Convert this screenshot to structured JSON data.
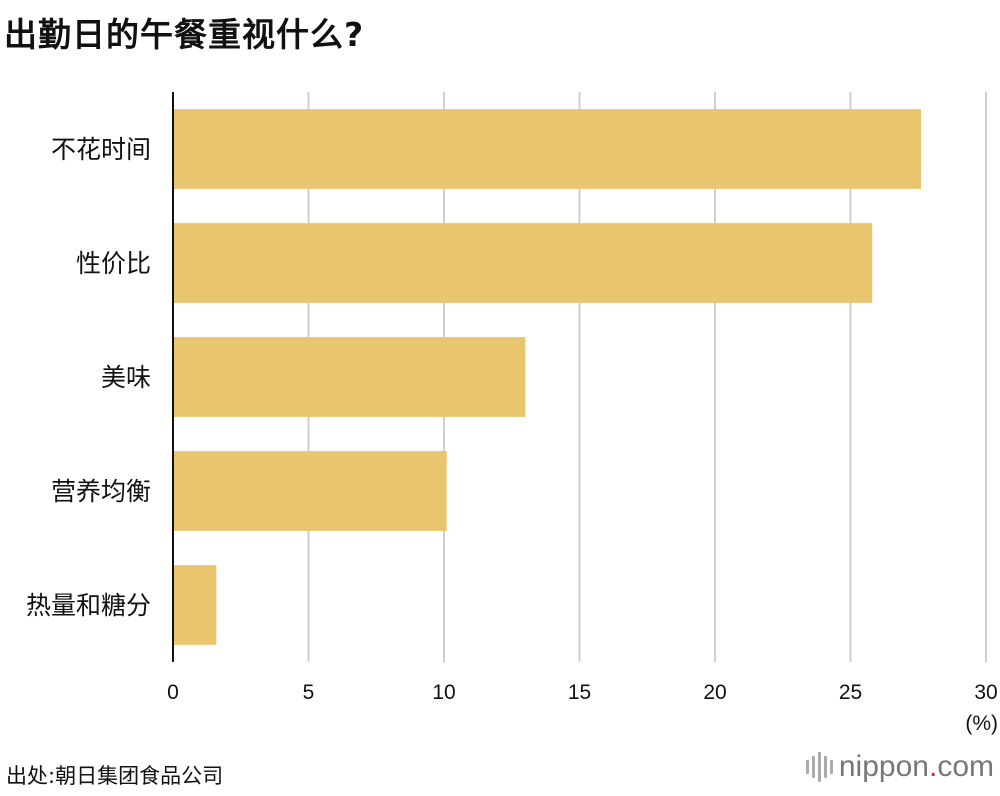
{
  "title": "出勤日的午餐重视什么?",
  "source": "出处:朝日集团食品公司",
  "brand": {
    "prefix": "nippon",
    "dot": ".",
    "suffix": "com",
    "accent_color": "#d62828",
    "icon": "nippon-sound-bars-icon"
  },
  "chart_data": {
    "type": "bar",
    "orientation": "horizontal",
    "title": "出勤日的午餐重视什么?",
    "categories": [
      "不花时间",
      "性价比",
      "美味",
      "营养均衡",
      "热量和糖分"
    ],
    "values": [
      27.6,
      25.8,
      13.0,
      10.1,
      1.6
    ],
    "xlim": [
      0,
      30
    ],
    "xticks": [
      0,
      5,
      10,
      15,
      20,
      25,
      30
    ],
    "xunit": "(%)",
    "bar_color": "#e8c56e",
    "grid": true
  }
}
